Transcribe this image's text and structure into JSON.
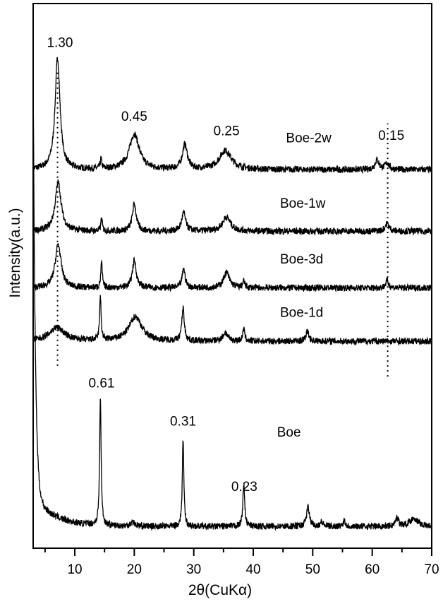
{
  "chart_data": {
    "type": "line",
    "xlabel": "2θ(CuKα)",
    "ylabel": "Intensity(a.u.)",
    "xlim": [
      3,
      70
    ],
    "ylim": [
      0,
      100
    ],
    "xticks": [
      10,
      20,
      30,
      40,
      50,
      60,
      70
    ],
    "xminor_ticks": [
      5,
      15,
      25,
      35,
      45,
      55,
      65
    ],
    "grid": false,
    "legend": "none",
    "line_color": "#000000",
    "series": [
      {
        "name": "Boe-2w",
        "baseline": 69.5,
        "peaks": [
          [
            7.1,
            20.5,
            0.5
          ],
          [
            14.4,
            1.8,
            0.15
          ],
          [
            20.0,
            6.5,
            1.0
          ],
          [
            28.5,
            4.5,
            0.5
          ],
          [
            35.3,
            3.5,
            1.2
          ],
          [
            60.8,
            1.8,
            0.4
          ],
          [
            62.5,
            1.2,
            0.4
          ]
        ]
      },
      {
        "name": "Boe-1w",
        "baseline": 58.2,
        "peaks": [
          [
            7.2,
            9.0,
            0.6
          ],
          [
            14.5,
            2.3,
            0.15
          ],
          [
            20.0,
            5.0,
            0.4
          ],
          [
            28.3,
            3.4,
            0.4
          ],
          [
            35.5,
            2.6,
            0.8
          ],
          [
            62.5,
            1.4,
            0.4
          ]
        ]
      },
      {
        "name": "Boe-3d",
        "baseline": 47.8,
        "peaks": [
          [
            7.2,
            8.0,
            0.6
          ],
          [
            14.5,
            4.6,
            0.15
          ],
          [
            20.0,
            5.0,
            0.4
          ],
          [
            28.3,
            3.5,
            0.3
          ],
          [
            35.5,
            2.8,
            0.6
          ],
          [
            38.4,
            1.2,
            0.2
          ],
          [
            62.5,
            1.3,
            0.3
          ]
        ]
      },
      {
        "name": "Boe-1d",
        "baseline": 38.0,
        "peaks": [
          [
            7.0,
            2.5,
            1.5
          ],
          [
            14.3,
            8.0,
            0.15
          ],
          [
            20.2,
            4.5,
            1.3
          ],
          [
            28.2,
            6.0,
            0.25
          ],
          [
            35.3,
            1.5,
            0.5
          ],
          [
            38.4,
            2.2,
            0.2
          ],
          [
            49.1,
            1.8,
            0.3
          ]
        ]
      },
      {
        "name": "Boe",
        "baseline": 4.0,
        "peaks": [
          [
            14.3,
            23.5,
            0.15
          ],
          [
            19.7,
            0.8,
            0.4
          ],
          [
            28.2,
            16.2,
            0.15
          ],
          [
            38.4,
            7.8,
            0.18
          ],
          [
            49.2,
            3.5,
            0.3
          ],
          [
            51.5,
            0.8,
            0.3
          ],
          [
            55.3,
            1.2,
            0.2
          ],
          [
            64.2,
            1.6,
            0.3
          ],
          [
            67.0,
            1.5,
            0.8
          ]
        ],
        "low_angle_rise": true
      }
    ],
    "annotations": [
      {
        "text": "1.30",
        "x": 7.5,
        "y": 92
      },
      {
        "text": "0.45",
        "x": 20.0,
        "y": 78.5
      },
      {
        "text": "0.25",
        "x": 35.5,
        "y": 75.8
      },
      {
        "text": "0.15",
        "x": 63.2,
        "y": 75
      },
      {
        "text": "0.61",
        "x": 14.5,
        "y": 29.5
      },
      {
        "text": "0.31",
        "x": 28.2,
        "y": 22.5
      },
      {
        "text": "0.23",
        "x": 38.5,
        "y": 10.5
      }
    ],
    "series_labels": [
      {
        "text": "Boe-2w",
        "x": 45.5,
        "y": 74.5
      },
      {
        "text": "Boe-1w",
        "x": 44.5,
        "y": 62.5
      },
      {
        "text": "Boe-3d",
        "x": 44.5,
        "y": 52.3
      },
      {
        "text": "Boe-1d",
        "x": 44.5,
        "y": 42.5
      },
      {
        "text": "Boe",
        "x": 44.0,
        "y": 20.5
      }
    ],
    "reference_lines": [
      {
        "x": 7.1,
        "y_from": 33.5,
        "y_to": 88
      },
      {
        "x": 62.6,
        "y_from": 31.5,
        "y_to": 78
      }
    ]
  }
}
